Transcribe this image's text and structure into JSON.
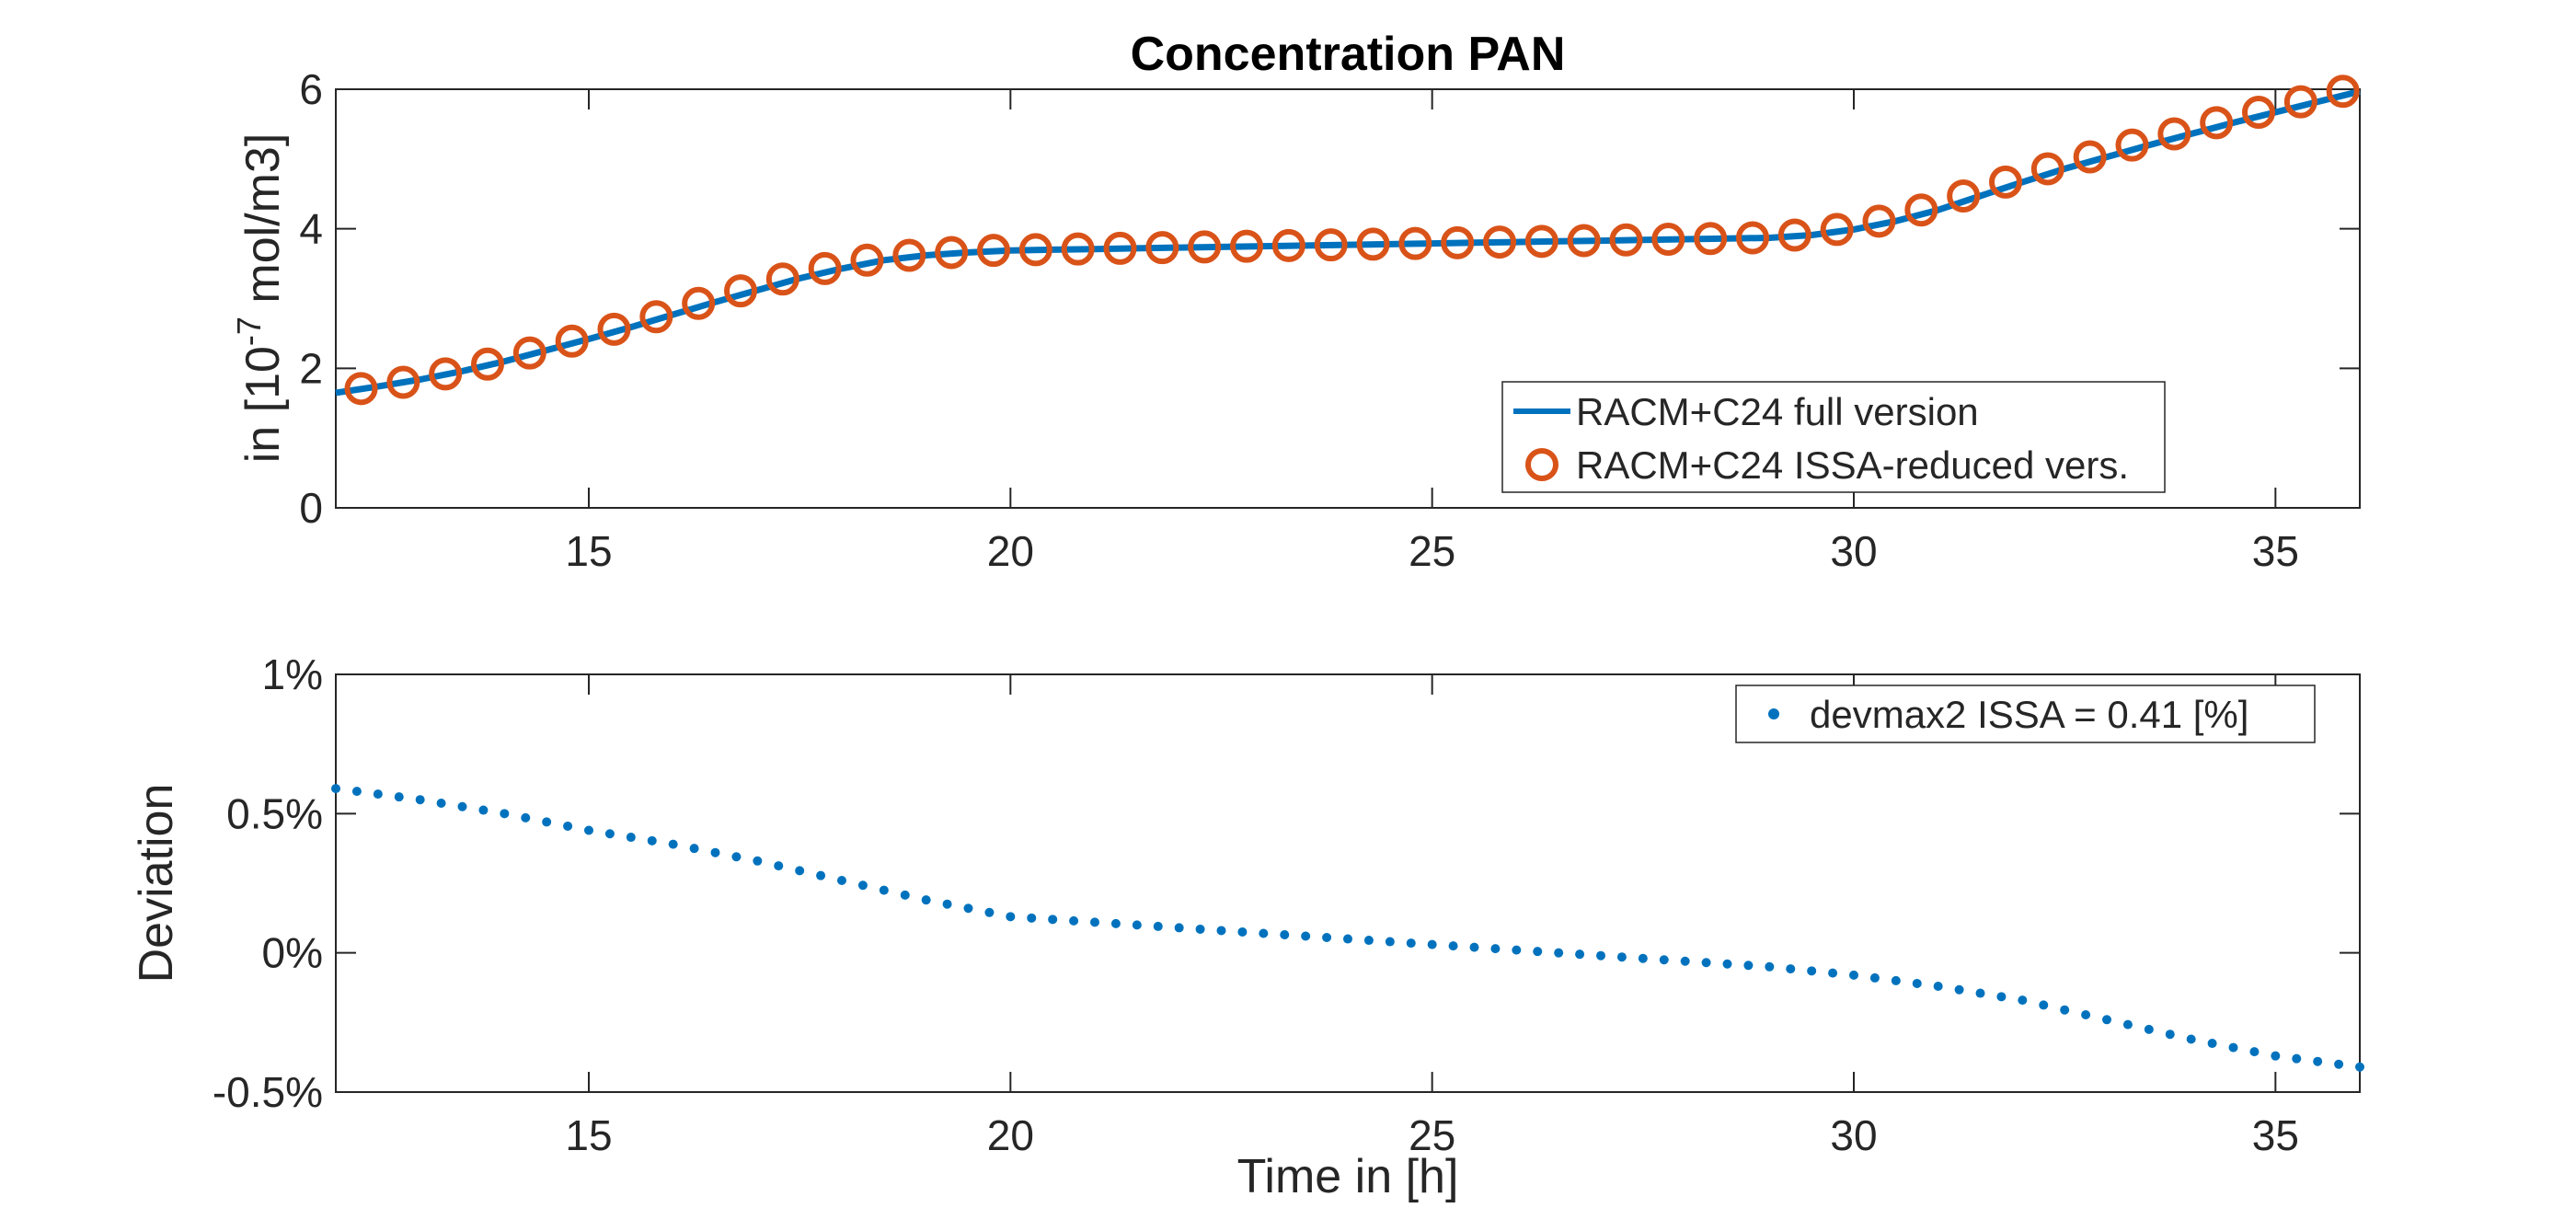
{
  "chart_data": [
    {
      "type": "line",
      "title": "Concentration PAN",
      "xlabel": "",
      "ylabel_prefix": "in [10",
      "ylabel_exponent": "-7",
      "ylabel_suffix": " mol/m3]",
      "xlim": [
        12,
        36
      ],
      "ylim": [
        0,
        6
      ],
      "xticks": [
        15,
        20,
        25,
        30,
        35
      ],
      "xtick_labels": [
        "15",
        "20",
        "25",
        "30",
        "35"
      ],
      "yticks": [
        0,
        2,
        4,
        6
      ],
      "ytick_labels": [
        "0",
        "2",
        "4",
        "6"
      ],
      "grid": false,
      "legend_position": "bottom-right",
      "series": [
        {
          "name": "RACM+C24 full version",
          "style": "line",
          "color": "#0072BD",
          "x": [
            12,
            12.5,
            13,
            13.5,
            14,
            14.5,
            15,
            15.5,
            16,
            16.5,
            17,
            17.5,
            18,
            18.5,
            19,
            19.5,
            20,
            20.5,
            21,
            21.5,
            22,
            22.5,
            23,
            23.5,
            24,
            24.5,
            25,
            25.5,
            26,
            26.5,
            27,
            27.5,
            28,
            28.5,
            29,
            29.5,
            30,
            30.5,
            31,
            31.5,
            32,
            32.5,
            33,
            33.5,
            34,
            34.5,
            35,
            35.5,
            36
          ],
          "y": [
            1.65,
            1.74,
            1.84,
            1.96,
            2.1,
            2.26,
            2.42,
            2.59,
            2.77,
            2.95,
            3.12,
            3.29,
            3.43,
            3.55,
            3.62,
            3.66,
            3.69,
            3.7,
            3.71,
            3.72,
            3.73,
            3.74,
            3.75,
            3.76,
            3.77,
            3.78,
            3.79,
            3.8,
            3.81,
            3.82,
            3.83,
            3.84,
            3.85,
            3.86,
            3.87,
            3.91,
            3.99,
            4.11,
            4.27,
            4.47,
            4.67,
            4.86,
            5.03,
            5.2,
            5.36,
            5.52,
            5.67,
            5.82,
            5.97
          ]
        },
        {
          "name": "RACM+C24 ISSA-reduced vers.",
          "style": "circle-markers",
          "color": "#D95319",
          "x": [
            12.3,
            12.8,
            13.3,
            13.8,
            14.3,
            14.8,
            15.3,
            15.8,
            16.3,
            16.8,
            17.3,
            17.8,
            18.3,
            18.8,
            19.3,
            19.8,
            20.3,
            20.8,
            21.3,
            21.8,
            22.3,
            22.8,
            23.3,
            23.8,
            24.3,
            24.8,
            25.3,
            25.8,
            26.3,
            26.8,
            27.3,
            27.8,
            28.3,
            28.8,
            29.3,
            29.8,
            30.3,
            30.8,
            31.3,
            31.8,
            32.3,
            32.8,
            33.3,
            33.8,
            34.3,
            34.8,
            35.3,
            35.8
          ],
          "y": [
            1.71,
            1.8,
            1.92,
            2.06,
            2.22,
            2.39,
            2.56,
            2.74,
            2.93,
            3.11,
            3.28,
            3.43,
            3.55,
            3.62,
            3.66,
            3.69,
            3.7,
            3.71,
            3.72,
            3.73,
            3.74,
            3.75,
            3.76,
            3.77,
            3.78,
            3.79,
            3.8,
            3.81,
            3.82,
            3.83,
            3.84,
            3.85,
            3.86,
            3.87,
            3.91,
            3.99,
            4.11,
            4.27,
            4.47,
            4.67,
            4.86,
            5.03,
            5.2,
            5.36,
            5.52,
            5.67,
            5.82,
            5.97
          ]
        }
      ]
    },
    {
      "type": "scatter",
      "title": "",
      "xlabel": "Time in [h]",
      "ylabel": "Deviation",
      "xlim": [
        12,
        36
      ],
      "ylim": [
        -0.5,
        1
      ],
      "xticks": [
        15,
        20,
        25,
        30,
        35
      ],
      "xtick_labels": [
        "15",
        "20",
        "25",
        "30",
        "35"
      ],
      "yticks": [
        -0.5,
        0,
        0.5,
        1
      ],
      "ytick_labels": [
        "-0.5%",
        "0%",
        "0.5%",
        "1%"
      ],
      "grid": false,
      "legend_position": "top-right",
      "series": [
        {
          "name": "devmax2 ISSA = 0.41 [%]",
          "style": "dot-markers",
          "color": "#0072BD",
          "x_start": 12,
          "x_end": 36,
          "count": 97,
          "curve_x": [
            12,
            13,
            14,
            15,
            16,
            17,
            18,
            19,
            20,
            21,
            22,
            23,
            24,
            25,
            26,
            27,
            28,
            29,
            30,
            31,
            32,
            33,
            34,
            35,
            36
          ],
          "curve_y": [
            0.59,
            0.55,
            0.5,
            0.44,
            0.39,
            0.33,
            0.26,
            0.19,
            0.13,
            0.11,
            0.09,
            0.07,
            0.05,
            0.03,
            0.01,
            -0.01,
            -0.03,
            -0.05,
            -0.08,
            -0.12,
            -0.17,
            -0.24,
            -0.31,
            -0.37,
            -0.41
          ]
        }
      ]
    }
  ]
}
